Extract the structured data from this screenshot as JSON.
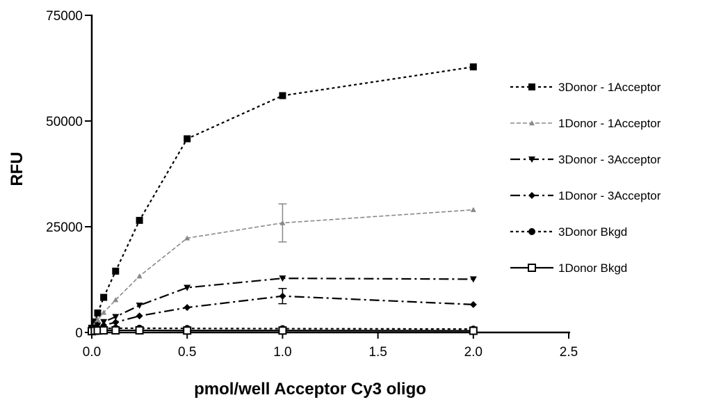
{
  "chart_data": {
    "type": "line",
    "title": "",
    "xlabel": "pmol/well Acceptor Cy3 oligo",
    "ylabel": "RFU",
    "xlim": [
      0,
      2.5
    ],
    "ylim": [
      0,
      75000
    ],
    "xticks": [
      "0.0",
      "0.5",
      "1.0",
      "1.5",
      "2.0",
      "2.5"
    ],
    "yticks": [
      "0",
      "25000",
      "50000",
      "75000"
    ],
    "grid": false,
    "legend_position": "right",
    "x": [
      0,
      0.016,
      0.031,
      0.0625,
      0.125,
      0.25,
      0.5,
      1.0,
      2.0
    ],
    "series": [
      {
        "name": "3Donor - 1Acceptor",
        "marker": "square",
        "line_style": "dotted",
        "color": "#000000",
        "values": [
          1000,
          2500,
          4600,
          8300,
          14500,
          26500,
          45800,
          56000,
          62800
        ],
        "error": [
          0,
          0,
          0,
          0,
          0,
          0,
          0,
          0,
          0
        ]
      },
      {
        "name": "1Donor - 1Acceptor",
        "marker": "triangle",
        "line_style": "dashed-light",
        "color": "#888888",
        "values": [
          900,
          2000,
          3000,
          4700,
          7700,
          13300,
          22300,
          25900,
          29000
        ],
        "error": [
          0,
          0,
          0,
          0,
          0,
          0,
          0,
          4500,
          0
        ]
      },
      {
        "name": "3Donor - 3Acceptor",
        "marker": "triangle-down",
        "line_style": "dash-dot",
        "color": "#000000",
        "values": [
          700,
          1200,
          1700,
          2500,
          3700,
          6400,
          10600,
          12800,
          12600
        ],
        "error": [
          0,
          0,
          0,
          0,
          0,
          0,
          0,
          0,
          0
        ]
      },
      {
        "name": "1Donor - 3Acceptor",
        "marker": "diamond",
        "line_style": "dash-dot",
        "color": "#000000",
        "values": [
          500,
          900,
          1200,
          1700,
          2400,
          3900,
          5900,
          8600,
          6600
        ],
        "error": [
          0,
          0,
          0,
          0,
          0,
          0,
          0,
          1800,
          0
        ]
      },
      {
        "name": "3Donor Bkgd",
        "marker": "circle",
        "line_style": "dotted",
        "color": "#000000",
        "values": [
          600,
          800,
          900,
          950,
          1000,
          1000,
          950,
          900,
          800
        ],
        "error": [
          0,
          0,
          0,
          0,
          0,
          0,
          0,
          0,
          0
        ]
      },
      {
        "name": "1Donor Bkgd",
        "marker": "open-square",
        "line_style": "solid",
        "color": "#000000",
        "values": [
          300,
          400,
          450,
          500,
          500,
          500,
          450,
          450,
          400
        ],
        "error": [
          0,
          0,
          0,
          0,
          0,
          0,
          0,
          0,
          0
        ]
      }
    ]
  }
}
